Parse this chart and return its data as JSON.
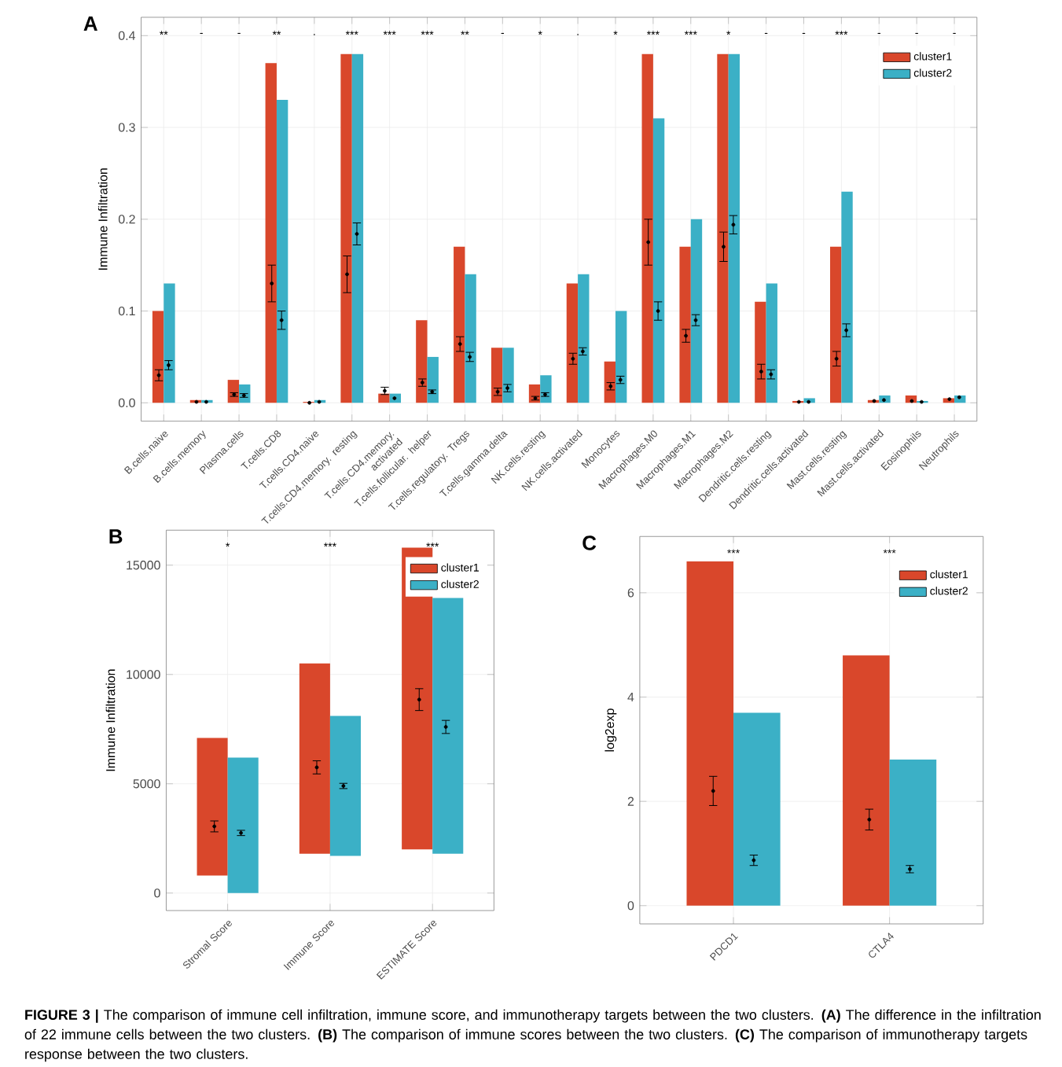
{
  "chart_data": [
    {
      "type": "bar",
      "title": "A",
      "ylabel": "Immune Infiltration",
      "categories": [
        "B.cells.naive",
        "B.cells.memory",
        "Plasma.cells",
        "T.cells.CD8",
        "T.cells.CD4.naive",
        "T.cells.CD4.memory. resting",
        "T.cells.CD4.memory. activated",
        "T.cells.follicular. helper",
        "T.cells.regulatory. Tregs",
        "T.cells.gamma.delta",
        "NK.cells.resting",
        "NK.cells.activated",
        "Monocytes",
        "Macrophages.M0",
        "Macrophages.M1",
        "Macrophages.M2",
        "Dendritic.cells.resting",
        "Dendritic.cells.activated",
        "Mast.cells.resting",
        "Mast.cells.activated",
        "Eosinophils",
        "Neutrophils"
      ],
      "ylim": [
        -0.02,
        0.42
      ],
      "yticks": [
        {
          "value": 0,
          "label": "0.0"
        },
        {
          "value": 0.1,
          "label": "0.1"
        },
        {
          "value": 0.2,
          "label": "0.2"
        },
        {
          "value": 0.3,
          "label": "0.3"
        },
        {
          "value": 0.4,
          "label": "0.4"
        }
      ],
      "grid": true,
      "legend": "top right",
      "series": [
        {
          "name": "cluster1",
          "color": "#d9472b",
          "values": [
            0.1,
            0.003,
            0.025,
            0.37,
            0.001,
            0.38,
            0.01,
            0.09,
            0.17,
            0.06,
            0.02,
            0.13,
            0.045,
            0.38,
            0.17,
            0.38,
            0.11,
            0.002,
            0.17,
            0.003,
            0.008,
            0.005
          ]
        },
        {
          "name": "cluster2",
          "color": "#3bb0c6",
          "values": [
            0.13,
            0.003,
            0.02,
            0.33,
            0.003,
            0.38,
            0.01,
            0.05,
            0.14,
            0.06,
            0.03,
            0.14,
            0.1,
            0.31,
            0.2,
            0.38,
            0.13,
            0.005,
            0.23,
            0.008,
            0.002,
            0.008
          ]
        },
        {
          "type": "scatter",
          "color": "#000000",
          "x": [
            "B.cells.naive",
            "B.cells.memory",
            "Plasma.cells",
            "T.cells.CD8",
            "T.cells.CD4.naive",
            "T.cells.CD4.memory. resting",
            "T.cells.CD4.memory. activated",
            "T.cells.follicular. helper",
            "T.cells.regulatory. Tregs",
            "T.cells.gamma.delta",
            "NK.cells.resting",
            "NK.cells.activated",
            "Monocytes",
            "Macrophages.M0",
            "Macrophages.M1",
            "Macrophages.M2",
            "Dendritic.cells.resting",
            "Dendritic.cells.activated",
            "Mast.cells.resting",
            "Mast.cells.activated",
            "Eosinophils",
            "Neutrophils"
          ],
          "values": [
            0.03,
            0.001,
            0.009,
            0.13,
            0.0,
            0.14,
            0.013,
            0.022,
            0.064,
            0.012,
            0.005,
            0.048,
            0.018,
            0.175,
            0.073,
            0.17,
            0.034,
            0.001,
            0.048,
            0.002,
            0.002,
            0.004
          ],
          "errors": [
            0.006,
            null,
            0.002,
            0.02,
            null,
            0.02,
            0.004,
            0.004,
            0.008,
            0.004,
            0.002,
            0.006,
            0.004,
            0.025,
            0.007,
            0.016,
            0.008,
            null,
            0.008,
            null,
            null,
            null
          ]
        },
        {
          "type": "scatter",
          "color": "#000000",
          "x": [
            "B.cells.naive",
            "B.cells.memory",
            "Plasma.cells",
            "T.cells.CD8",
            "T.cells.CD4.naive",
            "T.cells.CD4.memory. resting",
            "T.cells.CD4.memory. activated",
            "T.cells.follicular. helper",
            "T.cells.regulatory. Tregs",
            "T.cells.gamma.delta",
            "NK.cells.resting",
            "NK.cells.activated",
            "Monocytes",
            "Macrophages.M0",
            "Macrophages.M1",
            "Macrophages.M2",
            "Dendritic.cells.resting",
            "Dendritic.cells.activated",
            "Mast.cells.resting",
            "Mast.cells.activated",
            "Eosinophils",
            "Neutrophils"
          ],
          "values": [
            0.041,
            0.001,
            0.008,
            0.09,
            0.001,
            0.184,
            0.005,
            0.012,
            0.05,
            0.016,
            0.009,
            0.056,
            0.025,
            0.1,
            0.09,
            0.194,
            0.031,
            0.001,
            0.079,
            0.003,
            0.001,
            0.006
          ],
          "errors": [
            0.005,
            null,
            0.002,
            0.01,
            null,
            0.012,
            null,
            0.002,
            0.005,
            0.004,
            0.002,
            0.004,
            0.004,
            0.01,
            0.006,
            0.01,
            0.005,
            null,
            0.007,
            null,
            null,
            null
          ]
        }
      ],
      "annotations": [
        "**",
        "-",
        "-",
        "**",
        ".",
        "***",
        "***",
        "***",
        "**",
        "-",
        "*",
        ".",
        "*",
        "***",
        "***",
        "*",
        "-",
        "-",
        "***",
        "-",
        "-",
        "-",
        "**FIGURE 3 |** The comparison of immune cell infiltration, immune score, and immunotherapy targets between the two clusters. **(A)** The difference in the infiltration of 22 immune cells between the two clusters. **(B)** The comparison of immune scores between the two clusters. **(C)** The comparison of immunotherapy targets response between the two clusters."
      ]
    },
    {
      "type": "bar",
      "title": "B",
      "ylabel": "Immune Infiltration",
      "categories": [
        "Stromal Score",
        "Immune Score",
        "ESTIMATE Score"
      ],
      "ylim": [
        -800,
        16600
      ],
      "yticks": [
        0,
        5000,
        10000,
        15000
      ],
      "grid": true,
      "legend": "top right",
      "series": [
        {
          "name": "cluster1",
          "color": "#d9472b",
          "base": [
            800,
            1800,
            2000
          ],
          "values": [
            6300,
            8700,
            13800
          ]
        },
        {
          "name": "cluster2",
          "color": "#3bb0c6",
          "base": [
            0,
            1700,
            1800
          ],
          "values": [
            6200,
            6400,
            11700
          ]
        },
        {
          "type": "scatter",
          "color": "#000000",
          "x": [
            "Stromal Score",
            "Immune Score",
            "ESTIMATE Score"
          ],
          "values": [
            3050,
            5750,
            8850
          ],
          "errors": [
            250,
            300,
            500
          ]
        },
        {
          "type": "scatter",
          "color": "#000000",
          "x": [
            "Stromal Score",
            "Immune Score",
            "ESTIMATE Score"
          ],
          "values": [
            2750,
            4900,
            7600
          ],
          "errors": [
            120,
            120,
            300
          ]
        }
      ],
      "annotations": [
        "*",
        "***",
        "***"
      ]
    },
    {
      "type": "bar",
      "title": "C",
      "ylabel": "log2exp",
      "categories": [
        "PDCD1",
        "CTLA4"
      ],
      "ylim": [
        -0.35,
        7.08
      ],
      "yticks": [
        0,
        2,
        4,
        6
      ],
      "grid": true,
      "legend": "top right",
      "series": [
        {
          "name": "cluster1",
          "color": "#d9472b",
          "values": [
            6.6,
            4.8
          ]
        },
        {
          "name": "cluster2",
          "color": "#3bb0c6",
          "values": [
            3.7,
            2.8
          ]
        },
        {
          "type": "scatter",
          "color": "#000000",
          "x": [
            "PDCD1",
            "CTLA4"
          ],
          "values": [
            2.2,
            1.65
          ],
          "errors": [
            0.28,
            0.2
          ]
        },
        {
          "type": "scatter",
          "color": "#000000",
          "x": [
            "PDCD1",
            "CTLA4"
          ],
          "values": [
            0.87,
            0.7
          ],
          "errors": [
            0.1,
            0.07
          ]
        }
      ],
      "annotations": [
        "***",
        "***"
      ]
    }
  ]
}
